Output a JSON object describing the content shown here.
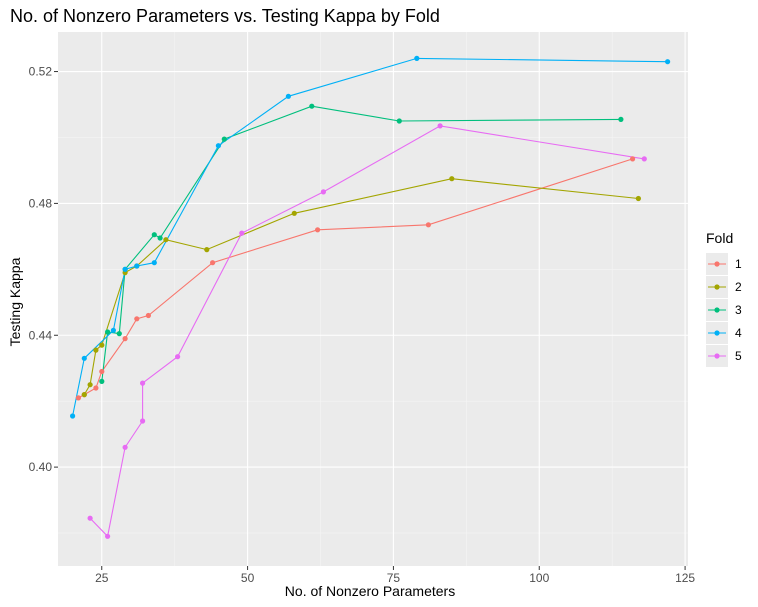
{
  "chart_data": {
    "type": "line",
    "title": "No. of Nonzero Parameters vs. Testing Kappa by Fold",
    "xlabel": "No. of Nonzero Parameters",
    "ylabel": "Testing Kappa",
    "xlim": [
      17.5,
      125.5
    ],
    "ylim": [
      0.37,
      0.532
    ],
    "x_ticks": [
      25,
      50,
      75,
      100,
      125
    ],
    "x_tick_labels": [
      "25",
      "50",
      "75",
      "100",
      "125"
    ],
    "y_ticks": [
      0.4,
      0.44,
      0.48,
      0.52
    ],
    "y_tick_labels": [
      "0.40",
      "0.44",
      "0.48",
      "0.52"
    ],
    "grid": true,
    "legend": {
      "title": "Fold",
      "placement": "right"
    },
    "series": [
      {
        "name": "1",
        "color": "#F8766D",
        "points": [
          [
            21,
            0.421
          ],
          [
            22,
            0.422
          ],
          [
            24,
            0.424
          ],
          [
            25,
            0.429
          ],
          [
            29,
            0.439
          ],
          [
            31,
            0.445
          ],
          [
            33,
            0.446
          ],
          [
            44,
            0.462
          ],
          [
            62,
            0.472
          ],
          [
            81,
            0.4735
          ],
          [
            116,
            0.4935
          ]
        ]
      },
      {
        "name": "2",
        "color": "#A3A500",
        "points": [
          [
            22,
            0.422
          ],
          [
            23,
            0.425
          ],
          [
            24,
            0.4355
          ],
          [
            25,
            0.437
          ],
          [
            29,
            0.459
          ],
          [
            31,
            0.461
          ],
          [
            36,
            0.469
          ],
          [
            43,
            0.466
          ],
          [
            58,
            0.477
          ],
          [
            85,
            0.4875
          ],
          [
            117,
            0.4815
          ]
        ]
      },
      {
        "name": "3",
        "color": "#00BF7D",
        "points": [
          [
            25,
            0.426
          ],
          [
            26,
            0.441
          ],
          [
            28,
            0.4405
          ],
          [
            29,
            0.46
          ],
          [
            34,
            0.4705
          ],
          [
            35,
            0.4695
          ],
          [
            46,
            0.4995
          ],
          [
            61,
            0.5095
          ],
          [
            76,
            0.505
          ],
          [
            114,
            0.5055
          ]
        ]
      },
      {
        "name": "4",
        "color": "#00B0F6",
        "points": [
          [
            20,
            0.4155
          ],
          [
            22,
            0.433
          ],
          [
            27,
            0.4415
          ],
          [
            29,
            0.46
          ],
          [
            31,
            0.461
          ],
          [
            34,
            0.462
          ],
          [
            45,
            0.4975
          ],
          [
            57,
            0.5125
          ],
          [
            79,
            0.524
          ],
          [
            122,
            0.523
          ]
        ]
      },
      {
        "name": "5",
        "color": "#E76BF3",
        "points": [
          [
            23,
            0.3845
          ],
          [
            26,
            0.379
          ],
          [
            29,
            0.406
          ],
          [
            32,
            0.414
          ],
          [
            32,
            0.4255
          ],
          [
            38,
            0.4335
          ],
          [
            49,
            0.471
          ],
          [
            63,
            0.4835
          ],
          [
            83,
            0.5035
          ],
          [
            118,
            0.4935
          ]
        ]
      }
    ]
  }
}
